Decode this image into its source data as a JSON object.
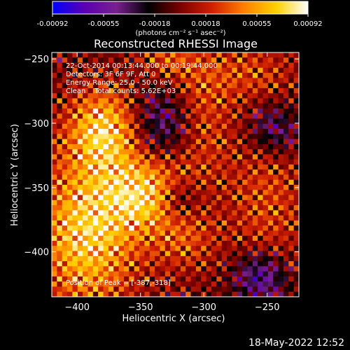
{
  "chart_data": {
    "type": "heatmap",
    "title": "Reconstructed RHESSI Image",
    "xlabel": "Heliocentric X (arcsec)",
    "ylabel": "Heliocentric Y (arcsec)",
    "xlim": [
      -420,
      -225
    ],
    "ylim": [
      -435,
      -245
    ],
    "x_ticks": [
      -400,
      -350,
      -300,
      -250
    ],
    "y_ticks": [
      -250,
      -300,
      -350,
      -400
    ],
    "x_tick_labels": [
      "−400",
      "−350",
      "−300",
      "−250"
    ],
    "y_tick_labels": [
      "−250",
      "−300",
      "−350",
      "−400"
    ],
    "colorbar": {
      "range": [
        -0.00092,
        0.00092
      ],
      "tick_labels": [
        "-0.00092",
        "-0.00055",
        "-0.00018",
        "0.00018",
        "0.00055",
        "0.00092"
      ],
      "unit_label": "(photons cm⁻² s⁻¹ asec⁻²)",
      "colors": [
        "#0000ff",
        "#5a00b0",
        "#7a2090",
        "#000000",
        "#7a0000",
        "#d02000",
        "#ff8000",
        "#ffd000",
        "#ffffff"
      ]
    },
    "annotations": [
      "22-Oct-2014 00:13:44.000 to 00:19:44.000",
      "Detectors: 3F 6F 9F, Att 0",
      "Energy Range: 25.0 - 50.0 keV",
      "Clean    Total counts: 5.62E+03"
    ],
    "peak_label": "Position of Peak = [-387,-318]",
    "peak": [
      -387,
      -318
    ],
    "sources": [
      {
        "x": -392,
        "y": -385,
        "amp": 0.00075,
        "sx": 28,
        "sy": 42
      },
      {
        "x": -378,
        "y": -305,
        "amp": 0.0007,
        "sx": 20,
        "sy": 22
      },
      {
        "x": -345,
        "y": -355,
        "amp": 0.00065,
        "sx": 22,
        "sy": 20
      },
      {
        "x": -305,
        "y": -295,
        "amp": 0.0004,
        "sx": 18,
        "sy": 35
      },
      {
        "x": -250,
        "y": -360,
        "amp": 0.0003,
        "sx": 22,
        "sy": 50
      },
      {
        "x": -265,
        "y": -260,
        "amp": 0.00025,
        "sx": 25,
        "sy": 15
      },
      {
        "x": -315,
        "y": -390,
        "amp": 0.0003,
        "sx": 18,
        "sy": 18
      },
      {
        "x": -330,
        "y": -250,
        "amp": 0.0003,
        "sx": 15,
        "sy": 10
      },
      {
        "x": -255,
        "y": -420,
        "amp": -0.0006,
        "sx": 15,
        "sy": 15
      },
      {
        "x": -330,
        "y": -300,
        "amp": -0.0005,
        "sx": 20,
        "sy": 20
      },
      {
        "x": -245,
        "y": -305,
        "amp": -0.00045,
        "sx": 15,
        "sy": 15
      },
      {
        "x": -320,
        "y": -360,
        "amp": -0.0004,
        "sx": 12,
        "sy": 12
      }
    ],
    "grid_size": [
      48,
      48
    ]
  },
  "footer": {
    "timestamp": "18-May-2022 12:52"
  }
}
